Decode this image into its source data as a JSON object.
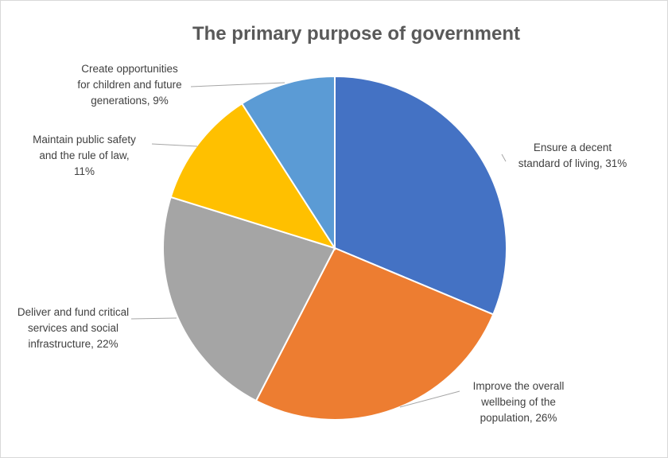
{
  "chart_data": {
    "type": "pie",
    "title": "The primary purpose of government",
    "slices": [
      {
        "label": "Ensure a decent standard of living",
        "value": 31,
        "label_text": [
          "Ensure a decent",
          "standard of living, 31%"
        ],
        "color": "#4472C4"
      },
      {
        "label": "Improve the overall wellbeing of the population",
        "value": 26,
        "label_text": [
          "Improve the overall",
          "wellbeing of the",
          "population, 26%"
        ],
        "color": "#ED7D31"
      },
      {
        "label": "Deliver and fund critical services and social infrastructure",
        "value": 22,
        "label_text": [
          "Deliver and fund critical",
          "services and social",
          "infrastructure, 22%"
        ],
        "color": "#A5A5A5"
      },
      {
        "label": "Maintain public safety and the rule of law",
        "value": 11,
        "label_text": [
          "Maintain public safety",
          "and the rule of law,",
          "11%"
        ],
        "color": "#FFC000"
      },
      {
        "label": "Create opportunities for children and future generations",
        "value": 9,
        "label_text": [
          "Create opportunities",
          "for children and future",
          "generations, 9%"
        ],
        "color": "#5B9BD5"
      }
    ],
    "start_angle": "12 o'clock",
    "direction": "clockwise",
    "legend": "none",
    "data_labels": "outside with leader lines"
  }
}
